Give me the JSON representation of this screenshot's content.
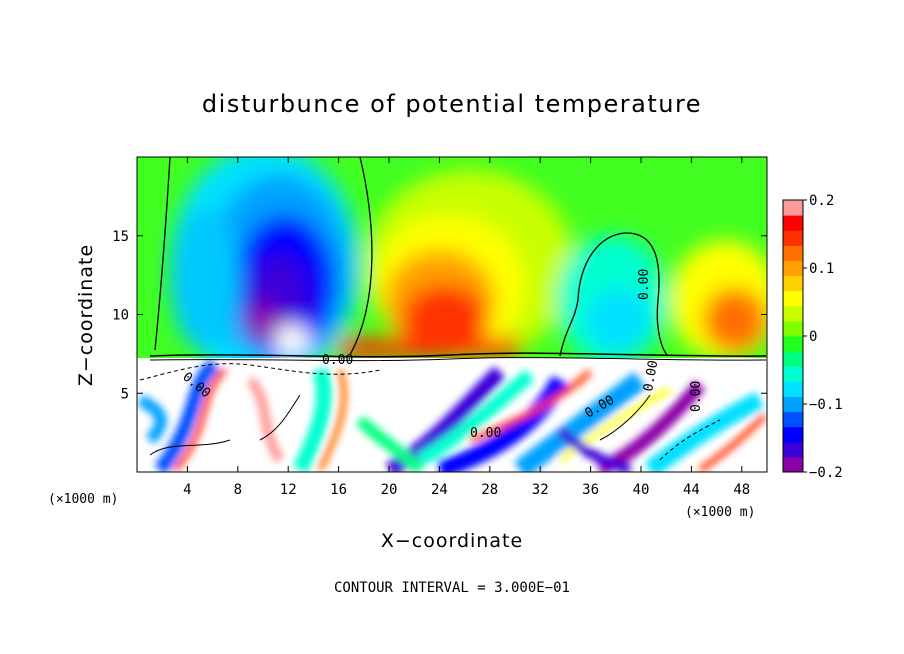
{
  "chart_data": {
    "type": "heatmap",
    "title": "disturbunce of potential temperature",
    "xlabel": "X−coordinate",
    "ylabel": "Z−coordinate",
    "x_unit_left": "(×1000 m)",
    "x_unit_right": "(×1000 m)",
    "xlim": [
      0,
      50
    ],
    "ylim": [
      0,
      20
    ],
    "x_ticks": [
      4,
      8,
      12,
      16,
      20,
      24,
      28,
      32,
      36,
      40,
      44,
      48
    ],
    "x_tick_labels": [
      "4",
      "8",
      "12",
      "16",
      "20",
      "24",
      "28",
      "32",
      "36",
      "40",
      "44",
      "48"
    ],
    "y_ticks": [
      5,
      10,
      15
    ],
    "y_tick_labels": [
      "5",
      "10",
      "15"
    ],
    "colorbar": {
      "range": [
        -0.2,
        0.2
      ],
      "ticks": [
        0.2,
        0.1,
        0,
        -0.1,
        -0.2
      ],
      "tick_labels": [
        "0.2",
        "0.1",
        "0",
        "−0.1",
        "−0.2"
      ],
      "colors": [
        "#8b00a8",
        "#3a00d8",
        "#0000ff",
        "#0050ff",
        "#00a0ff",
        "#00e0ff",
        "#00ffd0",
        "#00ff80",
        "#20ff20",
        "#80ff00",
        "#c8ff00",
        "#ffff00",
        "#ffd000",
        "#ffa000",
        "#ff7000",
        "#ff3000",
        "#ff0000",
        "#ff9a9a"
      ]
    },
    "contour_labels": [
      "0.00",
      "0.00",
      "0.00",
      "0.00",
      "0.00",
      "0.00",
      "0.00"
    ],
    "footer": "CONTOUR INTERVAL = 3.000E−01",
    "features": [
      {
        "x": 11,
        "z": 12,
        "value": -0.2
      },
      {
        "x": 25,
        "z": 11,
        "value": 0.12
      },
      {
        "x": 38,
        "z": 9,
        "value": -0.09
      },
      {
        "x": 47,
        "z": 10,
        "value": 0.1
      },
      {
        "x": 28,
        "z": 9,
        "value": 0.16
      },
      {
        "x": 4,
        "z": 14,
        "value": -0.06
      }
    ]
  }
}
